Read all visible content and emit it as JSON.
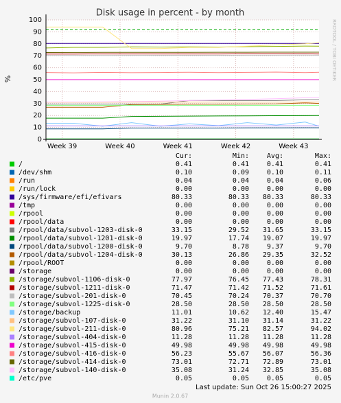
{
  "chart_data": {
    "type": "line",
    "title": "Disk usage in percent - by month",
    "y_label": "%",
    "side_text": "RRDTOOL / TOBI OETIKER",
    "xlim": [
      38.72,
      43.44
    ],
    "xticks": [
      {
        "value": 39,
        "label": "Week 39"
      },
      {
        "value": 40,
        "label": "Week 40"
      },
      {
        "value": 41,
        "label": "Week 41"
      },
      {
        "value": 42,
        "label": "Week 42"
      },
      {
        "value": 43,
        "label": "Week 43"
      }
    ],
    "ylim": [
      0,
      100
    ],
    "yticks": [
      0,
      10,
      20,
      30,
      40,
      50,
      60,
      70,
      80,
      90,
      100
    ],
    "grid": true,
    "thresholds": [
      {
        "value": 92,
        "color": "#00aa00"
      }
    ],
    "x": [
      38.72,
      39.2,
      39.7,
      40.2,
      40.7,
      41.2,
      41.7,
      42.2,
      42.7,
      43.2,
      43.44
    ],
    "stat_columns": [
      "Cur:",
      "Min:",
      "Avg:",
      "Max:"
    ],
    "series": [
      {
        "name": "/",
        "color": "#00cc00",
        "values": [
          0.41,
          0.41,
          0.41,
          0.41,
          0.41,
          0.41,
          0.41,
          0.41,
          0.41,
          0.41,
          0.41
        ],
        "stats": [
          "0.41",
          "0.41",
          "0.41",
          "0.41"
        ]
      },
      {
        "name": "/dev/shm",
        "color": "#0066b3",
        "values": [
          0.1,
          0.1,
          0.1,
          0.1,
          0.1,
          0.1,
          0.1,
          0.1,
          0.1,
          0.1,
          0.1
        ],
        "stats": [
          "0.10",
          "0.09",
          "0.10",
          "0.11"
        ]
      },
      {
        "name": "/run",
        "color": "#ff8000",
        "values": [
          0.04,
          0.04,
          0.04,
          0.04,
          0.04,
          0.04,
          0.04,
          0.04,
          0.04,
          0.04,
          0.04
        ],
        "stats": [
          "0.04",
          "0.04",
          "0.04",
          "0.06"
        ]
      },
      {
        "name": "/run/lock",
        "color": "#ffcc00",
        "values": [
          0,
          0,
          0,
          0,
          0,
          0,
          0,
          0,
          0,
          0,
          0
        ],
        "stats": [
          "0.00",
          "0.00",
          "0.00",
          "0.00"
        ]
      },
      {
        "name": "/sys/firmware/efi/efivars",
        "color": "#330099",
        "values": [
          80.33,
          80.33,
          80.33,
          80.33,
          80.33,
          80.33,
          80.33,
          80.33,
          80.33,
          80.33,
          80.33
        ],
        "stats": [
          "80.33",
          "80.33",
          "80.33",
          "80.33"
        ]
      },
      {
        "name": "/tmp",
        "color": "#990099",
        "values": [
          0,
          0,
          0,
          0,
          0,
          0,
          0,
          0,
          0,
          0,
          0
        ],
        "stats": [
          "0.00",
          "0.00",
          "0.00",
          "0.00"
        ]
      },
      {
        "name": "/rpool",
        "color": "#ccff00",
        "values": [
          0,
          0,
          0,
          0,
          0,
          0,
          0,
          0,
          0,
          0,
          0
        ],
        "stats": [
          "0.00",
          "0.00",
          "0.00",
          "0.00"
        ]
      },
      {
        "name": "/rpool/data",
        "color": "#ff0000",
        "values": [
          0,
          0,
          0,
          0,
          0,
          0,
          0,
          0,
          0,
          0,
          0
        ],
        "stats": [
          "0.00",
          "0.00",
          "0.00",
          "0.00"
        ]
      },
      {
        "name": "/rpool/data/subvol-1203-disk-0",
        "color": "#808080",
        "values": [
          29.52,
          29.52,
          29.52,
          29.52,
          29.52,
          32.5,
          32.5,
          32.5,
          32.5,
          33.1,
          33.15
        ],
        "stats": [
          "33.15",
          "29.52",
          "31.65",
          "33.15"
        ]
      },
      {
        "name": "/rpool/data/subvol-1201-disk-0",
        "color": "#008f00",
        "values": [
          17.74,
          17.74,
          17.74,
          19.2,
          19.3,
          19.5,
          19.6,
          19.7,
          19.8,
          19.9,
          19.97
        ],
        "stats": [
          "19.97",
          "17.74",
          "19.07",
          "19.97"
        ]
      },
      {
        "name": "/rpool/data/subvol-1200-disk-0",
        "color": "#00487d",
        "values": [
          8.78,
          8.78,
          8.78,
          9.5,
          9.5,
          9.5,
          9.5,
          9.6,
          9.6,
          9.7,
          9.7
        ],
        "stats": [
          "9.70",
          "8.78",
          "9.37",
          "9.70"
        ]
      },
      {
        "name": "/rpool/data/subvol-1204-disk-0",
        "color": "#b35a00",
        "values": [
          26.86,
          26.86,
          26.86,
          29.2,
          29.3,
          29.4,
          29.5,
          29.6,
          29.7,
          30.5,
          30.13
        ],
        "stats": [
          "30.13",
          "26.86",
          "29.35",
          "32.52"
        ]
      },
      {
        "name": "/rpool/ROOT",
        "color": "#b38f00",
        "values": [
          0,
          0,
          0,
          0,
          0,
          0,
          0,
          0,
          0,
          0,
          0
        ],
        "stats": [
          "0.00",
          "0.00",
          "0.00",
          "0.00"
        ]
      },
      {
        "name": "/storage",
        "color": "#6b006b",
        "values": [
          0,
          0,
          0,
          0,
          0,
          0,
          0,
          0,
          0,
          0,
          0
        ],
        "stats": [
          "0.00",
          "0.00",
          "0.00",
          "0.00"
        ]
      },
      {
        "name": "/storage/subvol-1106-disk-0",
        "color": "#8fb300",
        "values": [
          76.5,
          77,
          77,
          77.5,
          77.3,
          77.5,
          77.3,
          77.6,
          77.8,
          78.1,
          77.97
        ],
        "stats": [
          "77.97",
          "76.45",
          "77.43",
          "78.31"
        ]
      },
      {
        "name": "/storage/subvol-1211-disk-0",
        "color": "#b30000",
        "values": [
          71.42,
          71.42,
          71.5,
          71.5,
          71.5,
          71.5,
          71.5,
          71.6,
          71.6,
          71.6,
          71.47
        ],
        "stats": [
          "71.47",
          "71.42",
          "71.52",
          "71.61"
        ]
      },
      {
        "name": "/storage/subvol-201-disk-0",
        "color": "#bebebe",
        "values": [
          70.24,
          70.3,
          70.3,
          70.35,
          70.4,
          70.4,
          70.4,
          70.45,
          70.45,
          70.5,
          70.45
        ],
        "stats": [
          "70.45",
          "70.24",
          "70.37",
          "70.70"
        ]
      },
      {
        "name": "/storage/subvol-1225-disk-0",
        "color": "#80ff80",
        "values": [
          28.5,
          28.5,
          28.5,
          28.5,
          28.5,
          28.5,
          28.5,
          28.5,
          28.5,
          28.5,
          28.5
        ],
        "stats": [
          "28.50",
          "28.50",
          "28.50",
          "28.50"
        ]
      },
      {
        "name": "/storage/backup",
        "color": "#80c9ff",
        "values": [
          13.5,
          13.5,
          11,
          14,
          11,
          13,
          11.5,
          14,
          12,
          14.5,
          11.01
        ],
        "stats": [
          "11.01",
          "10.62",
          "12.40",
          "15.47"
        ]
      },
      {
        "name": "/storage/subvol-107-disk-0",
        "color": "#ffc080",
        "values": [
          31.1,
          31.1,
          31.1,
          31.15,
          31.15,
          31.15,
          31.15,
          31.2,
          31.2,
          31.2,
          31.22
        ],
        "stats": [
          "31.22",
          "31.10",
          "31.14",
          "31.22"
        ]
      },
      {
        "name": "/storage/subvol-211-disk-0",
        "color": "#ffe680",
        "values": [
          94,
          94,
          94,
          76,
          76,
          77,
          77,
          78,
          79,
          80,
          80.96
        ],
        "stats": [
          "80.96",
          "75.21",
          "82.57",
          "94.02"
        ]
      },
      {
        "name": "/storage/subvol-404-disk-0",
        "color": "#aa80ff",
        "values": [
          11.28,
          11.28,
          11.28,
          11.28,
          11.28,
          11.28,
          11.28,
          11.28,
          11.28,
          11.28,
          11.28
        ],
        "stats": [
          "11.28",
          "11.28",
          "11.28",
          "11.28"
        ]
      },
      {
        "name": "/storage/subvol-415-disk-0",
        "color": "#ee00cc",
        "values": [
          49.98,
          49.98,
          49.98,
          49.98,
          49.98,
          49.98,
          49.98,
          49.98,
          49.98,
          49.98,
          49.98
        ],
        "stats": [
          "49.98",
          "49.98",
          "49.98",
          "49.98"
        ]
      },
      {
        "name": "/storage/subvol-416-disk-0",
        "color": "#ff8080",
        "values": [
          56,
          55.7,
          56.1,
          55.8,
          56,
          56.2,
          55.9,
          56.1,
          56.3,
          55.9,
          56.23
        ],
        "stats": [
          "56.23",
          "55.67",
          "56.07",
          "56.36"
        ]
      },
      {
        "name": "/storage/subvol-414-disk-0",
        "color": "#666600",
        "values": [
          72.71,
          72.75,
          72.8,
          72.85,
          72.9,
          72.9,
          72.95,
          72.95,
          73,
          73,
          73.01
        ],
        "stats": [
          "73.01",
          "72.71",
          "72.89",
          "73.01"
        ]
      },
      {
        "name": "/storage/subvol-140-disk-0",
        "color": "#ffbfff",
        "values": [
          31.24,
          31.3,
          31.4,
          31.6,
          32,
          32.5,
          33,
          33.5,
          34,
          34.8,
          35.08
        ],
        "stats": [
          "35.08",
          "31.24",
          "32.85",
          "35.08"
        ]
      },
      {
        "name": "/etc/pve",
        "color": "#00ffcc",
        "values": [
          0.05,
          0.05,
          0.05,
          0.05,
          0.05,
          0.05,
          0.05,
          0.05,
          0.05,
          0.05,
          0.05
        ],
        "stats": [
          "0.05",
          "0.05",
          "0.05",
          "0.05"
        ]
      }
    ],
    "last_update": "Last update: Sun Oct 26 15:00:27 2025",
    "footer": "Munin 2.0.67"
  }
}
